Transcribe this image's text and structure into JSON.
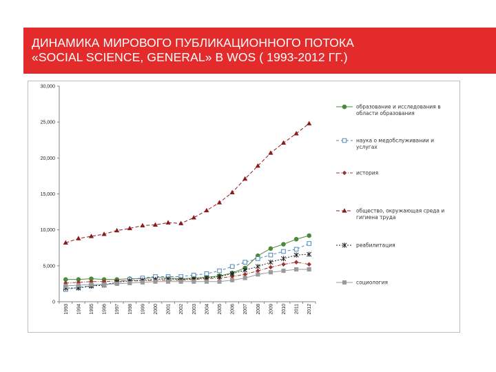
{
  "title": {
    "line1": "ДИНАМИКА МИРОВОГО ПУБЛИКАЦИОННОГО ПОТОКА",
    "line2": "«SOCIAL SCIENCE, GENERAL» В WOS  ( 1993-2012 ГГ.)"
  },
  "colors": {
    "banner": "#e32b2b",
    "axis": "#808080"
  },
  "chart_data": {
    "type": "line",
    "title": "",
    "xlabel": "",
    "ylabel": "",
    "ylim": [
      0,
      30000
    ],
    "yticks": [
      "0",
      "5,000",
      "10,000",
      "15,000",
      "20,000",
      "25,000",
      "30,000"
    ],
    "ytick_values": [
      0,
      5000,
      10000,
      15000,
      20000,
      25000,
      30000
    ],
    "categories": [
      "1993",
      "1994",
      "1995",
      "1996",
      "1997",
      "1998",
      "1999",
      "2000",
      "2001",
      "2002",
      "2003",
      "2004",
      "2005",
      "2006",
      "2007",
      "2008",
      "2009",
      "2010",
      "2011",
      "2012"
    ],
    "legend_position": "right",
    "series": [
      {
        "name": "образование и исследования в области образования",
        "legend_lines": [
          "образование и исследования в",
          "области образования"
        ],
        "color": "#4a8a3a",
        "dash": "",
        "marker": "circle",
        "values": [
          3100,
          3100,
          3200,
          3100,
          3100,
          3200,
          3200,
          3400,
          3300,
          3200,
          3300,
          3400,
          3600,
          4000,
          4700,
          6400,
          7400,
          8000,
          8700,
          9200
        ]
      },
      {
        "name": "наука о медобслуживании и услугах",
        "legend_lines": [
          "наука о медобслуживании и",
          "услугах"
        ],
        "color": "#4f87b8",
        "dash": "4,3",
        "marker": "square",
        "values": [
          1700,
          2000,
          2200,
          2400,
          2700,
          3100,
          3300,
          3500,
          3500,
          3500,
          3700,
          3900,
          4300,
          4900,
          5500,
          6000,
          6500,
          7000,
          7300,
          8100
        ]
      },
      {
        "name": "история",
        "legend_lines": [
          "история"
        ],
        "color": "#a0322e",
        "dash": "5,2,1,2",
        "marker": "diamond",
        "values": [
          2600,
          2700,
          2800,
          2800,
          2900,
          2900,
          2900,
          3000,
          3000,
          3000,
          3100,
          3200,
          3300,
          3500,
          3800,
          4300,
          4800,
          5200,
          5500,
          5200
        ]
      },
      {
        "name": "общество, окружающая среда и гигиена труда",
        "legend_lines": [
          "общество, окружающая среда и",
          "гигиена труда"
        ],
        "color": "#8b1a1a",
        "dash": "5,3",
        "marker": "triangle",
        "values": [
          8200,
          8800,
          9100,
          9400,
          9900,
          10200,
          10600,
          10700,
          11000,
          10900,
          11700,
          12700,
          13800,
          15200,
          17100,
          18900,
          20700,
          22100,
          23400,
          24800
        ]
      },
      {
        "name": "реабилитация",
        "legend_lines": [
          "реабилитация"
        ],
        "color": "#1f1f1f",
        "dash": "2,2",
        "marker": "star",
        "values": [
          1900,
          1900,
          2200,
          2300,
          2700,
          2900,
          3000,
          3100,
          3200,
          3100,
          3200,
          3300,
          3500,
          3900,
          4400,
          4900,
          5500,
          6000,
          6500,
          6600
        ]
      },
      {
        "name": "социология",
        "legend_lines": [
          "социология"
        ],
        "color": "#9a9a9a",
        "dash": "",
        "marker": "square-filled",
        "values": [
          2200,
          2300,
          2400,
          2400,
          2500,
          2600,
          2700,
          2800,
          2800,
          2800,
          2800,
          2800,
          2800,
          3000,
          3300,
          3800,
          4100,
          4300,
          4500,
          4500
        ]
      }
    ]
  }
}
